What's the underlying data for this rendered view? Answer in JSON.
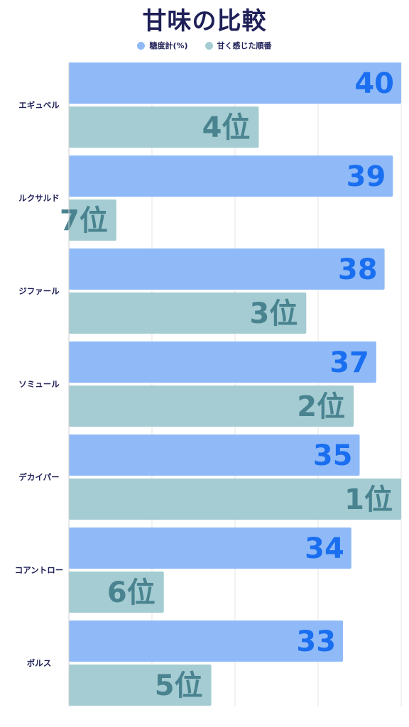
{
  "title": "甘味の比較",
  "legend": {
    "sugar": "糖度計(%)",
    "rank": "甘く感じた順番"
  },
  "colors": {
    "sugar_bar": "#8fbaf7",
    "sugar_text": "#1a6ef0",
    "rank_bar": "#a4ccd2",
    "rank_text": "#4a8390",
    "text": "#1f2057",
    "grid": "#e6e6e6"
  },
  "chart_data": {
    "type": "bar",
    "orientation": "horizontal",
    "title": "甘味の比較",
    "categories": [
      "エギュベル",
      "ルクサルド",
      "ジファール",
      "ソミュール",
      "デカイパー",
      "コアントロー",
      "ポルス"
    ],
    "series": [
      {
        "name": "糖度計(%)",
        "values": [
          40,
          39,
          38,
          37,
          35,
          34,
          33
        ],
        "labels": [
          "40",
          "39",
          "38",
          "37",
          "35",
          "34",
          "33"
        ]
      },
      {
        "name": "甘く感じた順番",
        "values": [
          4,
          7,
          3,
          2,
          1,
          6,
          5
        ],
        "labels": [
          "4位",
          "7位",
          "3位",
          "2位",
          "1位",
          "6位",
          "5位"
        ]
      }
    ],
    "grid": true,
    "legend_position": "top"
  }
}
